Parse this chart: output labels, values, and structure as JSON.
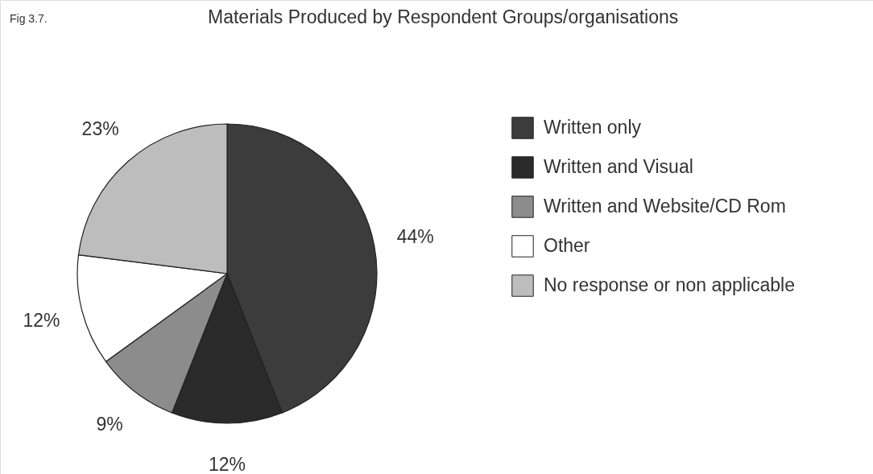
{
  "chart_data": {
    "type": "pie",
    "title": "Materials Produced by Respondent Groups/organisations",
    "annotations": [
      "Fig 3.7."
    ],
    "categories": [
      "Written only",
      "Written and Visual",
      "Written and Website/CD Rom",
      "Other",
      "No response or non applicable"
    ],
    "values": [
      44,
      12,
      9,
      12,
      23
    ],
    "colors": [
      "#3c3c3c",
      "#2a2a2a",
      "#8c8c8c",
      "#ffffff",
      "#bdbdbd"
    ],
    "value_labels": [
      "44%",
      "12%",
      "9%",
      "12%",
      "23%"
    ],
    "legend": "right"
  }
}
